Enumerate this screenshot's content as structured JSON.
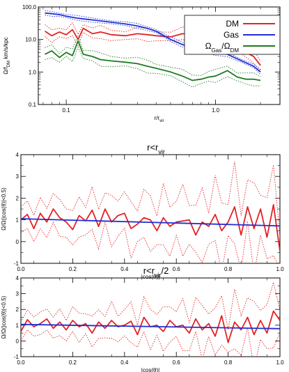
{
  "chart_data": [
    {
      "type": "line",
      "xlabel": "r/r_vir",
      "ylabel": "Ω/f_DM km/s/kpc",
      "xscale": "log",
      "yscale": "log",
      "xlim": [
        0.065,
        2.7
      ],
      "ylim": [
        0.1,
        100
      ],
      "xticks": [
        {
          "v": 0.1,
          "label": "0.1"
        },
        {
          "v": 1.0,
          "label": "1.0"
        }
      ],
      "yticks": [
        {
          "v": 0.1,
          "label": "0.1"
        },
        {
          "v": 1,
          "label": "1.0"
        },
        {
          "v": 10,
          "label": "10.0"
        },
        {
          "v": 100,
          "label": "100.0"
        }
      ],
      "legend_position": "top-right",
      "legend": [
        {
          "label": "DM",
          "color": "#e32222"
        },
        {
          "label": "Gas",
          "color": "#1f2fd6"
        },
        {
          "label": "Ω_Gas/Ω_DM",
          "color": "#1e7a1e"
        }
      ],
      "series": [
        {
          "name": "DM",
          "color": "#e32222",
          "x": [
            0.072,
            0.08,
            0.09,
            0.1,
            0.11,
            0.12,
            0.13,
            0.15,
            0.17,
            0.2,
            0.25,
            0.3,
            0.35,
            0.4,
            0.5,
            0.6,
            0.7,
            0.8,
            0.9,
            1.0,
            1.2,
            1.4,
            1.6,
            1.8,
            2.0
          ],
          "y": [
            18,
            13,
            17,
            14,
            20,
            10,
            22,
            15,
            17,
            14,
            13,
            15,
            14,
            13,
            12,
            15,
            14,
            11,
            14,
            12,
            8,
            6,
            4,
            3,
            1.6
          ]
        },
        {
          "name": "Gas",
          "color": "#1f2fd6",
          "x": [
            0.072,
            0.08,
            0.09,
            0.1,
            0.12,
            0.15,
            0.2,
            0.25,
            0.3,
            0.35,
            0.4,
            0.5,
            0.6,
            0.7,
            0.8,
            1.0,
            1.2,
            1.5,
            1.8,
            2.0
          ],
          "y": [
            65,
            62,
            58,
            52,
            45,
            40,
            34,
            30,
            26,
            22,
            18,
            10,
            7,
            5.5,
            4.5,
            3.8,
            3.5,
            2.2,
            1.5,
            1.0
          ]
        },
        {
          "name": "Ω_Gas/Ω_DM",
          "color": "#1e7a1e",
          "x": [
            0.072,
            0.08,
            0.09,
            0.1,
            0.11,
            0.12,
            0.13,
            0.15,
            0.17,
            0.2,
            0.25,
            0.3,
            0.35,
            0.4,
            0.5,
            0.6,
            0.7,
            0.8,
            0.9,
            1.0,
            1.2,
            1.4,
            1.6,
            1.8,
            2.0
          ],
          "y": [
            3.5,
            4.5,
            2.8,
            4,
            3.2,
            9,
            3.5,
            3,
            2.4,
            2.2,
            2,
            1.8,
            1.5,
            1.3,
            1,
            0.75,
            0.55,
            0.6,
            0.7,
            0.75,
            1.1,
            0.7,
            0.6,
            0.6,
            0.55
          ]
        }
      ]
    },
    {
      "type": "line",
      "title": "r<r_vir",
      "xlabel": "|cos(θ)|",
      "ylabel": "Ω/Ω(|cos(θ)|<0.5)",
      "xlim": [
        0,
        1
      ],
      "ylim": [
        -1,
        4
      ],
      "xticks": [
        {
          "v": 0.0,
          "label": "0.0"
        },
        {
          "v": 0.2,
          "label": "0.2"
        },
        {
          "v": 0.4,
          "label": "0.4"
        },
        {
          "v": 0.6,
          "label": "0.6"
        },
        {
          "v": 0.8,
          "label": "0.8"
        },
        {
          "v": 1.0,
          "label": "1.0"
        }
      ],
      "yticks": [
        {
          "v": -1,
          "label": "-1"
        },
        {
          "v": 0,
          "label": "0"
        },
        {
          "v": 1,
          "label": "1"
        },
        {
          "v": 2,
          "label": "2"
        },
        {
          "v": 3,
          "label": "3"
        },
        {
          "v": 4,
          "label": "4"
        }
      ],
      "series": [
        {
          "color": "#e32222",
          "x": [
            0,
            0.025,
            0.05,
            0.075,
            0.1,
            0.125,
            0.15,
            0.175,
            0.2,
            0.225,
            0.25,
            0.275,
            0.3,
            0.325,
            0.35,
            0.375,
            0.4,
            0.425,
            0.45,
            0.475,
            0.5,
            0.525,
            0.55,
            0.575,
            0.6,
            0.625,
            0.65,
            0.675,
            0.7,
            0.725,
            0.75,
            0.775,
            0.8,
            0.825,
            0.85,
            0.875,
            0.9,
            0.925,
            0.95,
            0.975,
            1.0
          ],
          "y": [
            1.0,
            1.25,
            0.6,
            1.3,
            0.9,
            1.5,
            1.1,
            0.9,
            0.55,
            1.2,
            0.95,
            1.45,
            0.7,
            1.5,
            0.9,
            1.2,
            1.3,
            0.6,
            0.8,
            1.1,
            1.0,
            0.5,
            1.1,
            0.7,
            0.9,
            0.95,
            1.0,
            0.3,
            0.9,
            0.7,
            1.25,
            0.5,
            0.9,
            1.6,
            0.3,
            1.6,
            0.6,
            1.5,
            0.2,
            1.7,
            -0.45
          ]
        },
        {
          "color": "#1f2fd6",
          "x": [
            0,
            1
          ],
          "y": [
            1.05,
            0.72
          ]
        }
      ]
    },
    {
      "type": "line",
      "title": "r<r_vir/2",
      "xlabel": "|cos(θ)|",
      "ylabel": "Ω/Ω(|cos(θ)|<0.5)",
      "xlim": [
        0,
        1
      ],
      "ylim": [
        -1,
        4
      ],
      "xticks": [
        {
          "v": 0.0,
          "label": "0.0"
        },
        {
          "v": 0.2,
          "label": "0.2"
        },
        {
          "v": 0.4,
          "label": "0.4"
        },
        {
          "v": 0.6,
          "label": "0.6"
        },
        {
          "v": 0.8,
          "label": "0.8"
        },
        {
          "v": 1.0,
          "label": "1.0"
        }
      ],
      "yticks": [
        {
          "v": -1,
          "label": "-1"
        },
        {
          "v": 0,
          "label": "0"
        },
        {
          "v": 1,
          "label": "1"
        },
        {
          "v": 2,
          "label": "2"
        },
        {
          "v": 3,
          "label": "3"
        },
        {
          "v": 4,
          "label": "4"
        }
      ],
      "series": [
        {
          "color": "#e32222",
          "x": [
            0,
            0.025,
            0.05,
            0.075,
            0.1,
            0.125,
            0.15,
            0.175,
            0.2,
            0.225,
            0.25,
            0.275,
            0.3,
            0.325,
            0.35,
            0.375,
            0.4,
            0.425,
            0.45,
            0.475,
            0.5,
            0.525,
            0.55,
            0.575,
            0.6,
            0.625,
            0.65,
            0.675,
            0.7,
            0.725,
            0.75,
            0.775,
            0.8,
            0.825,
            0.85,
            0.875,
            0.9,
            0.925,
            0.95,
            0.975,
            1.0
          ],
          "y": [
            0.6,
            1.35,
            0.9,
            1.1,
            1.4,
            0.8,
            1.2,
            0.7,
            1.3,
            0.9,
            1.1,
            0.5,
            1.2,
            0.8,
            1.3,
            0.9,
            1.0,
            1.25,
            0.4,
            1.5,
            0.9,
            1.0,
            0.6,
            1.3,
            0.9,
            1.0,
            0.5,
            1.4,
            0.7,
            1.1,
            0.3,
            1.6,
            -0.1,
            1.2,
            0.7,
            1.5,
            0.4,
            1.3,
            0.5,
            1.9,
            1.3
          ]
        },
        {
          "color": "#1f2fd6",
          "x": [
            0,
            1
          ],
          "y": [
            1.05,
            0.78
          ]
        }
      ]
    }
  ]
}
